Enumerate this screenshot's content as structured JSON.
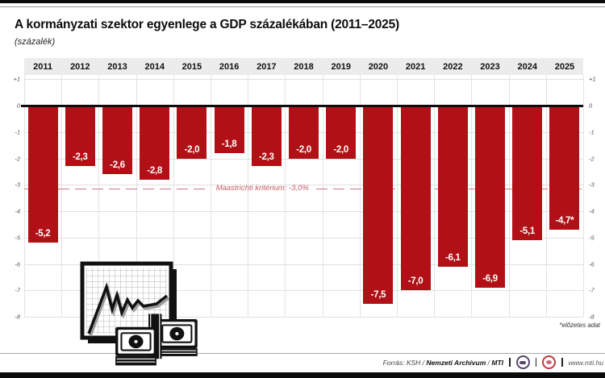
{
  "header": {
    "title": "A kormányzati szektor egyenlege a GDP százalékában (2011–2025)",
    "subtitle": "(százalék)"
  },
  "chart_data": {
    "type": "bar",
    "categories": [
      "2011",
      "2012",
      "2013",
      "2014",
      "2015",
      "2016",
      "2017",
      "2018",
      "2019",
      "2020",
      "2021",
      "2022",
      "2023",
      "2024",
      "2025"
    ],
    "values": [
      -5.2,
      -2.3,
      -2.6,
      -2.8,
      -2.0,
      -1.8,
      -2.3,
      -2.0,
      -2.0,
      -7.5,
      -7.0,
      -6.1,
      -6.9,
      -5.1,
      -4.7
    ],
    "labels": [
      "-5,2",
      "-2,3",
      "-2,6",
      "-2,8",
      "-2,0",
      "-1,8",
      "-2,3",
      "-2,0",
      "-2,0",
      "-7,5",
      "-7,0",
      "-6,1",
      "-6,9",
      "-5,1",
      "-4,7*"
    ],
    "title": "A kormányzati szektor egyenlege a GDP százalékában (2011–2025)",
    "xlabel": "",
    "ylabel": "(százalék)",
    "ylim": [
      -8,
      1
    ],
    "yticks": [
      "+1",
      "0",
      "-1",
      "-2",
      "-3",
      "-4",
      "-5",
      "-6",
      "-7",
      "-8"
    ],
    "grid": true,
    "legend": "none",
    "bar_color": "#b11116",
    "reference_line": {
      "value": -3.0,
      "label": "Maastrichti kritérium: -3,0%",
      "color": "#c25b65"
    }
  },
  "footnote": "*előzetes adat",
  "footer": {
    "source_prefix": "Forrás: KSH /",
    "source_bold1": "Nemzeti Archívum",
    "source_sep": "/",
    "source_bold2": "MTI",
    "website": "www.mti.hu",
    "logos": [
      "mtva-logo",
      "mti-logo"
    ]
  }
}
